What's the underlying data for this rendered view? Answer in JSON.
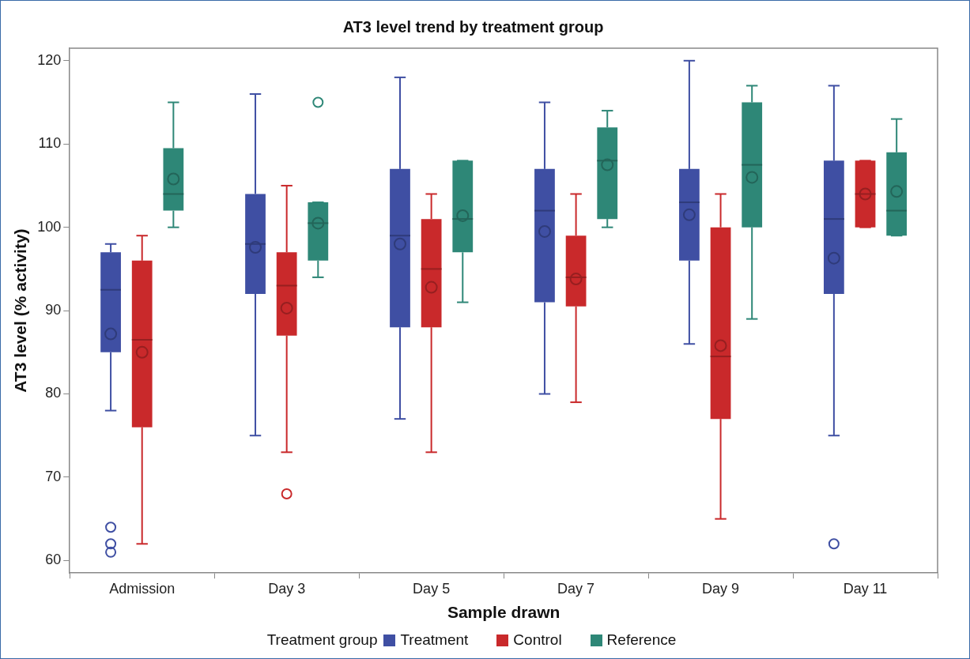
{
  "chart_data": {
    "type": "box",
    "title": "AT3 level trend by treatment group",
    "xlabel": "Sample drawn",
    "ylabel": "AT3 level (% activity)",
    "legend_title": "Treatment group",
    "legend": "bottom",
    "grid": false,
    "marker": "circle",
    "categories": [
      "Admission",
      "Day 3",
      "Day 5",
      "Day 7",
      "Day 9",
      "Day 11"
    ],
    "ylim": [
      58.5,
      121.5
    ],
    "yticks": [
      60,
      70,
      80,
      90,
      100,
      110,
      120
    ],
    "series": [
      {
        "name": "Treatment",
        "color": "#3f4fa3",
        "boxes": [
          {
            "low": 78,
            "q1": 85,
            "median": 92.5,
            "q3": 97,
            "high": 98,
            "mean": 87.2,
            "outliers": [
              64,
              62,
              61
            ]
          },
          {
            "low": 75,
            "q1": 92,
            "median": 98,
            "q3": 104,
            "high": 116,
            "mean": 97.6
          },
          {
            "low": 77,
            "q1": 88,
            "median": 99,
            "q3": 107,
            "high": 118,
            "mean": 98
          },
          {
            "low": 80,
            "q1": 91,
            "median": 102,
            "q3": 107,
            "high": 115,
            "mean": 99.5
          },
          {
            "low": 86,
            "q1": 96,
            "median": 103,
            "q3": 107,
            "high": 120,
            "mean": 101.5
          },
          {
            "low": 75,
            "q1": 92,
            "median": 101,
            "q3": 108,
            "high": 117,
            "mean": 96.3,
            "outliers": [
              62
            ]
          }
        ]
      },
      {
        "name": "Control",
        "color": "#c9292b",
        "boxes": [
          {
            "low": 62,
            "q1": 76,
            "median": 86.5,
            "q3": 96,
            "high": 99,
            "mean": 85
          },
          {
            "low": 73,
            "q1": 87,
            "median": 93,
            "q3": 97,
            "high": 105,
            "mean": 90.3,
            "outliers": [
              68
            ]
          },
          {
            "low": 73,
            "q1": 88,
            "median": 95,
            "q3": 101,
            "high": 104,
            "mean": 92.8
          },
          {
            "low": 79,
            "q1": 90.5,
            "median": 94,
            "q3": 99,
            "high": 104,
            "mean": 93.8
          },
          {
            "low": 65,
            "q1": 77,
            "median": 84.5,
            "q3": 100,
            "high": 104,
            "mean": 85.8
          },
          {
            "low": 100,
            "q1": 100,
            "median": 104,
            "q3": 108,
            "high": 108,
            "mean": 104
          }
        ]
      },
      {
        "name": "Reference",
        "color": "#2e8777",
        "boxes": [
          {
            "low": 100,
            "q1": 102,
            "median": 104,
            "q3": 109.5,
            "high": 115,
            "mean": 105.8
          },
          {
            "low": 94,
            "q1": 96,
            "median": 100.5,
            "q3": 103,
            "high": 103,
            "mean": 100.5,
            "outliers": [
              115
            ]
          },
          {
            "low": 91,
            "q1": 97,
            "median": 101,
            "q3": 108,
            "high": 108,
            "mean": 101.4
          },
          {
            "low": 100,
            "q1": 101,
            "median": 108,
            "q3": 112,
            "high": 114,
            "mean": 107.5
          },
          {
            "low": 89,
            "q1": 100,
            "median": 107.5,
            "q3": 115,
            "high": 117,
            "mean": 106
          },
          {
            "low": 99,
            "q1": 99,
            "median": 102,
            "q3": 109,
            "high": 113,
            "mean": 104.3
          }
        ]
      }
    ]
  }
}
